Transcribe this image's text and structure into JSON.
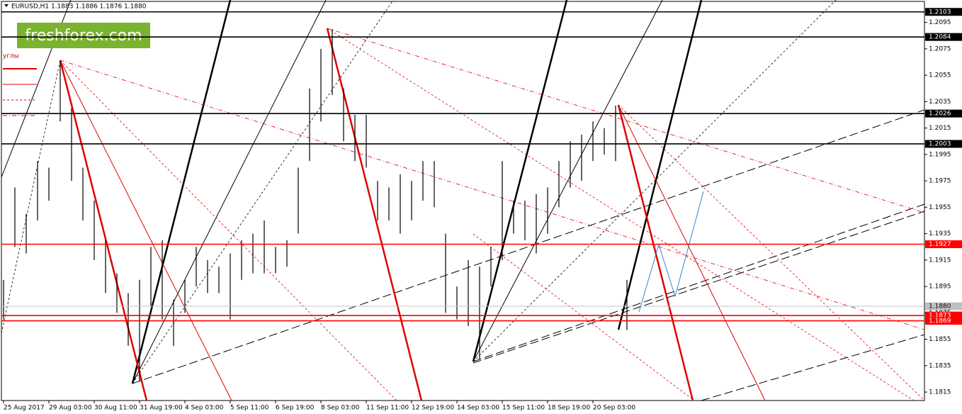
{
  "chart_data": {
    "type": "ohlc",
    "title": "EURUSD,H1  1.1883 1.1886 1.1876 1.1880",
    "watermark": "freshforex.com",
    "legend_label": "углы",
    "color": "#000000",
    "categories": [
      "25 Aug 2017",
      null,
      null,
      null,
      "29 Aug 03:00",
      null,
      null,
      null,
      "30 Aug 11:00",
      null,
      null,
      null,
      "31 Aug 19:00",
      null,
      null,
      null,
      "4 Sep 03:00",
      null,
      null,
      null,
      "5 Sep 11:00",
      null,
      null,
      null,
      "6 Sep 19:00",
      null,
      null,
      null,
      "8 Sep 03:00",
      null,
      null,
      null,
      "11 Sep 11:00",
      null,
      null,
      null,
      "12 Sep 19:00",
      null,
      null,
      null,
      "14 Sep 03:00",
      null,
      null,
      null,
      "15 Sep 11:00",
      null,
      null,
      null,
      "18 Sep 19:00",
      null,
      null,
      null,
      "20 Sep 03:00",
      null,
      null,
      null
    ],
    "high": [
      1.19,
      1.197,
      1.195,
      1.199,
      1.1985,
      1.2066,
      1.203,
      1.1985,
      1.196,
      1.193,
      1.1905,
      1.189,
      1.19,
      1.1925,
      1.193,
      1.1885,
      1.19,
      1.1925,
      1.1915,
      1.191,
      1.192,
      1.193,
      1.1935,
      1.1945,
      1.1925,
      1.193,
      1.1985,
      1.2045,
      1.2075,
      1.209,
      1.2045,
      1.2025,
      1.2025,
      1.1975,
      1.197,
      1.198,
      1.1975,
      1.199,
      1.199,
      1.1935,
      1.1895,
      1.1915,
      1.191,
      1.1925,
      1.199,
      1.196,
      1.196,
      1.1965,
      1.197,
      1.199,
      1.2005,
      1.201,
      1.202,
      1.2015,
      1.2032,
      1.19
    ],
    "low": [
      1.187,
      1.1925,
      1.192,
      1.1945,
      1.196,
      1.202,
      1.1975,
      1.1945,
      1.1915,
      1.189,
      1.1875,
      1.185,
      1.1823,
      1.188,
      1.187,
      1.185,
      1.1875,
      1.1895,
      1.189,
      1.189,
      1.187,
      1.19,
      1.1905,
      1.1905,
      1.1905,
      1.191,
      1.1935,
      1.199,
      1.202,
      1.204,
      1.2005,
      1.199,
      1.1985,
      1.1945,
      1.1945,
      1.1935,
      1.1945,
      1.196,
      1.1955,
      1.1875,
      1.187,
      1.1865,
      1.184,
      1.1895,
      1.1915,
      1.1935,
      1.193,
      1.192,
      1.1935,
      1.1955,
      1.197,
      1.1975,
      1.199,
      1.1995,
      1.199,
      1.1862
    ],
    "ylim": [
      1.18086,
      1.2112
    ],
    "yticks": [
      1.1815,
      1.1835,
      1.1855,
      1.1875,
      1.1895,
      1.1915,
      1.1935,
      1.1955,
      1.1975,
      1.1995,
      1.2015,
      1.2035,
      1.2055,
      1.2075,
      1.2095
    ],
    "levels": [
      {
        "value": 1.2103,
        "color": "#000000"
      },
      {
        "value": 1.2084,
        "color": "#000000"
      },
      {
        "value": 1.2026,
        "color": "#000000"
      },
      {
        "value": 1.2003,
        "color": "#000000"
      },
      {
        "value": 1.1927,
        "color": "#ff0000"
      },
      {
        "value": 1.188,
        "label": "1.1880",
        "color": "#c0c0c0"
      },
      {
        "value": 1.1873,
        "color": "#ff0000"
      },
      {
        "value": 1.1869,
        "color": "#ff0000"
      }
    ],
    "grid": false
  }
}
